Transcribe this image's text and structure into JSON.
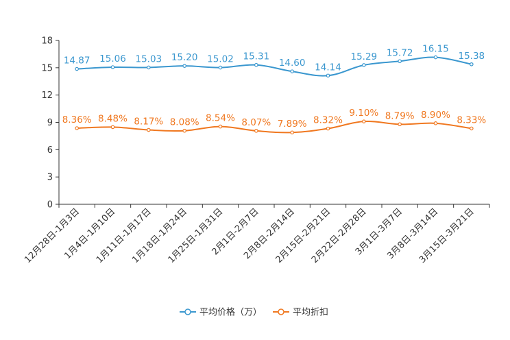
{
  "chart_data": {
    "type": "line",
    "title": "",
    "xlabel": "",
    "ylabel": "",
    "ylim": [
      0,
      18
    ],
    "yticks": [
      0,
      3,
      6,
      9,
      12,
      15,
      18
    ],
    "categories": [
      "12月28日-1月3日",
      "1月4日-1月10日",
      "1月11日-1月17日",
      "1月18日-1月24日",
      "1月25日-1月31日",
      "2月1日-2月7日",
      "2月8日-2月14日",
      "2月15日-2月21日",
      "2月22日-2月28日",
      "3月1日-3月7日",
      "3月8日-3月14日",
      "3月15日-3月21日"
    ],
    "series": [
      {
        "name": "平均价格（万）",
        "color": "#3a97cf",
        "values": [
          14.87,
          15.06,
          15.03,
          15.2,
          15.02,
          15.31,
          14.6,
          14.14,
          15.29,
          15.72,
          16.15,
          15.38
        ],
        "labels": [
          "14.87",
          "15.06",
          "15.03",
          "15.20",
          "15.02",
          "15.31",
          "14.60",
          "14.14",
          "15.29",
          "15.72",
          "16.15",
          "15.38"
        ]
      },
      {
        "name": "平均折扣",
        "color": "#f07820",
        "values": [
          8.36,
          8.48,
          8.17,
          8.08,
          8.54,
          8.07,
          7.89,
          8.32,
          9.1,
          8.79,
          8.9,
          8.33
        ],
        "labels": [
          "8.36%",
          "8.48%",
          "8.17%",
          "8.08%",
          "8.54%",
          "8.07%",
          "7.89%",
          "8.32%",
          "9.10%",
          "8.79%",
          "8.90%",
          "8.33%"
        ]
      }
    ],
    "legend_position": "bottom-center"
  }
}
